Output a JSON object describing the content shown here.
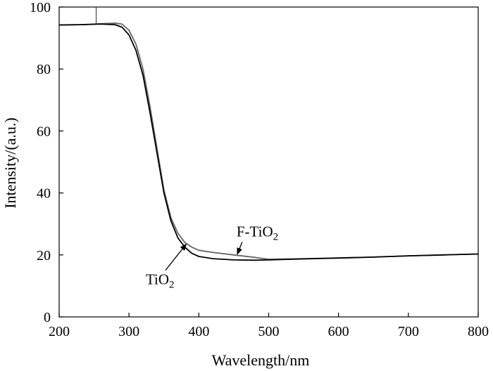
{
  "chart_data": {
    "type": "line",
    "title": "",
    "xlabel": "Wavelength/nm",
    "ylabel": "Intensity/(a.u.)",
    "xlim": [
      200,
      800
    ],
    "ylim": [
      0,
      100
    ],
    "xticks": [
      200,
      300,
      400,
      500,
      600,
      700,
      800
    ],
    "yticks": [
      0,
      20,
      40,
      60,
      80,
      100
    ],
    "grid": false,
    "legend": "none",
    "series": [
      {
        "color": "#000000",
        "x": [
          200,
          230,
          260,
          280,
          290,
          300,
          310,
          320,
          330,
          340,
          350,
          360,
          370,
          380,
          390,
          400,
          420,
          450,
          480,
          500,
          550,
          600,
          650,
          700,
          750,
          800
        ],
        "y": [
          94.2,
          94.3,
          94.5,
          94.3,
          93.5,
          91.0,
          86.0,
          78.0,
          66.0,
          53.0,
          40.0,
          31.0,
          25.5,
          22.5,
          20.5,
          19.5,
          18.8,
          18.4,
          18.3,
          18.4,
          18.7,
          19.0,
          19.3,
          19.7,
          20.0,
          20.3
        ]
      },
      {
        "color": "#666666",
        "x": [
          200,
          230,
          260,
          280,
          290,
          300,
          310,
          320,
          330,
          340,
          350,
          360,
          370,
          380,
          390,
          400,
          420,
          450,
          480,
          500,
          550,
          600,
          650,
          700,
          750,
          800
        ],
        "y": [
          94.2,
          94.3,
          94.6,
          94.8,
          94.5,
          92.5,
          88.0,
          80.0,
          68.0,
          54.5,
          41.0,
          32.0,
          27.0,
          24.0,
          22.5,
          21.5,
          20.8,
          20.0,
          19.2,
          18.6,
          18.8,
          19.0,
          19.3,
          19.7,
          20.0,
          20.3
        ]
      }
    ],
    "spike": {
      "x": 253,
      "y_from": 94.4,
      "y_to": 100
    },
    "annotations": [
      {
        "label": "F-TiO",
        "subscript": "2",
        "text_at": [
          454,
          26
        ],
        "arrow_to": [
          455,
          20.2
        ]
      },
      {
        "label": "TiO",
        "subscript": "2",
        "text_at": [
          324,
          10.5
        ],
        "arrow_to": [
          382,
          23.5
        ]
      }
    ]
  }
}
